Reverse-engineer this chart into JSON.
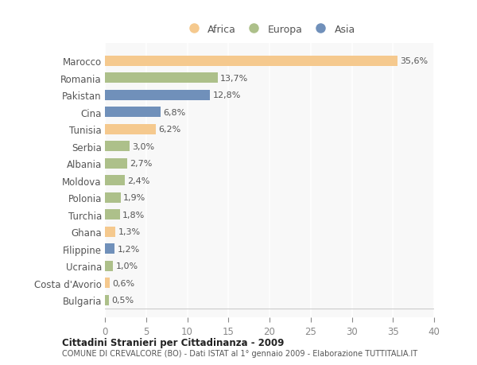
{
  "countries": [
    "Marocco",
    "Romania",
    "Pakistan",
    "Cina",
    "Tunisia",
    "Serbia",
    "Albania",
    "Moldova",
    "Polonia",
    "Turchia",
    "Ghana",
    "Filippine",
    "Ucraina",
    "Costa d'Avorio",
    "Bulgaria"
  ],
  "values": [
    35.6,
    13.7,
    12.8,
    6.8,
    6.2,
    3.0,
    2.7,
    2.4,
    1.9,
    1.8,
    1.3,
    1.2,
    1.0,
    0.6,
    0.5
  ],
  "labels": [
    "35,6%",
    "13,7%",
    "12,8%",
    "6,8%",
    "6,2%",
    "3,0%",
    "2,7%",
    "2,4%",
    "1,9%",
    "1,8%",
    "1,3%",
    "1,2%",
    "1,0%",
    "0,6%",
    "0,5%"
  ],
  "colors": [
    "#f5c98e",
    "#adc08a",
    "#7090ba",
    "#7090ba",
    "#f5c98e",
    "#adc08a",
    "#adc08a",
    "#adc08a",
    "#adc08a",
    "#adc08a",
    "#f5c98e",
    "#7090ba",
    "#adc08a",
    "#f5c98e",
    "#adc08a"
  ],
  "legend": [
    {
      "label": "Africa",
      "color": "#f5c98e"
    },
    {
      "label": "Europa",
      "color": "#adc08a"
    },
    {
      "label": "Asia",
      "color": "#7090ba"
    }
  ],
  "xlim": [
    0,
    40
  ],
  "xticks": [
    0,
    5,
    10,
    15,
    20,
    25,
    30,
    35,
    40
  ],
  "title": "Cittadini Stranieri per Cittadinanza - 2009",
  "subtitle": "COMUNE DI CREVALCORE (BO) - Dati ISTAT al 1° gennaio 2009 - Elaborazione TUTTITALIA.IT",
  "background_color": "#ffffff",
  "plot_bg_color": "#f8f8f8",
  "bar_height": 0.6,
  "label_fontsize": 8,
  "ytick_fontsize": 8.5,
  "xtick_fontsize": 8.5
}
